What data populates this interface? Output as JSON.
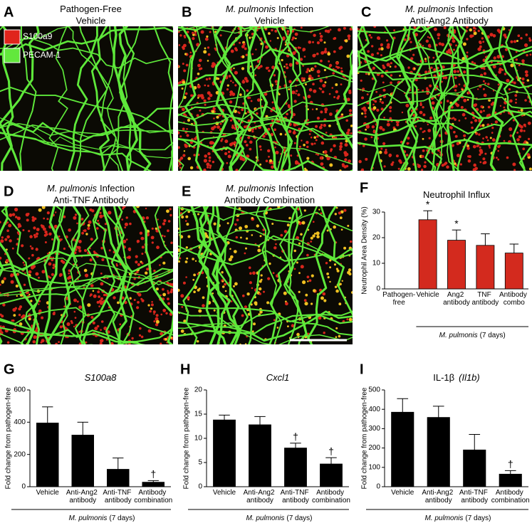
{
  "panels": [
    {
      "letter": "A",
      "line1": "Pathogen-Free",
      "line2": "Vehicle"
    },
    {
      "letter": "B",
      "italic": "M. pulmonis",
      "line1": "Infection",
      "line2": "Vehicle"
    },
    {
      "letter": "C",
      "italic": "M. pulmonis",
      "line1": "Infection",
      "line2": "Anti-Ang2 Antibody"
    },
    {
      "letter": "D",
      "italic": "M. pulmonis",
      "line1": "Infection",
      "line2": "Anti-TNF Antibody"
    },
    {
      "letter": "E",
      "italic": "M. pulmonis",
      "line1": "Infection",
      "line2": "Antibody Combination"
    }
  ],
  "legend": [
    {
      "name": "S100a9",
      "color": "#e0241c"
    },
    {
      "name": "PECAM-1",
      "color": "#62e83c"
    }
  ],
  "chart_data": [
    {
      "type": "bar",
      "letter": "F",
      "title": "Neutrophil Influx",
      "ylabel": "Neutrophil Area Density (%)",
      "categories": [
        "Pathogen-free",
        "Vehicle",
        "Ang2 antibody",
        "TNF antibody",
        "Antibody combo"
      ],
      "values": [
        0,
        27,
        19,
        17,
        14
      ],
      "errors": [
        0,
        3.5,
        4,
        4.5,
        3.5
      ],
      "markers": [
        null,
        "*",
        "*",
        null,
        null
      ],
      "color": "#d32a1e",
      "ylim": [
        0,
        30
      ],
      "yticks": [
        0,
        10,
        20,
        30
      ],
      "group_label_italic": "M. pulmonis",
      "group_label": "(7 days)"
    },
    {
      "type": "bar",
      "letter": "G",
      "title_italic": "S100a8",
      "ylabel": "Fold change from pathogen-free",
      "categories": [
        "Vehicle",
        "Anti-Ang2 antibody",
        "Anti-TNF antibody",
        "Antibody combination"
      ],
      "values": [
        395,
        320,
        108,
        28
      ],
      "errors": [
        100,
        80,
        70,
        10
      ],
      "markers": [
        null,
        null,
        null,
        "†"
      ],
      "color": "#000000",
      "ylim": [
        0,
        600
      ],
      "yticks": [
        0,
        200,
        400,
        600
      ],
      "group_label_italic": "M. pulmonis",
      "group_label": "(7 days)"
    },
    {
      "type": "bar",
      "letter": "H",
      "title_italic": "Cxcl1",
      "ylabel": "Fold change from pathogen-free",
      "categories": [
        "Vehicle",
        "Anti-Ang2 antibody",
        "Anti-TNF antibody",
        "Antibody combination"
      ],
      "values": [
        13.8,
        12.8,
        8,
        4.7
      ],
      "errors": [
        1,
        1.7,
        1,
        1.3
      ],
      "markers": [
        null,
        null,
        "†",
        "†"
      ],
      "color": "#000000",
      "ylim": [
        0,
        20
      ],
      "yticks": [
        0,
        5,
        10,
        15,
        20
      ],
      "group_label_italic": "M. pulmonis",
      "group_label": "(7 days)"
    },
    {
      "type": "bar",
      "letter": "I",
      "title": "IL-1β",
      "title_italic": "(Il1b)",
      "ylabel": "Fold change from pathogen-free",
      "categories": [
        "Vehicle",
        "Anti-Ang2 antibody",
        "Anti-TNF antibody",
        "Antibody combination"
      ],
      "values": [
        385,
        358,
        190,
        65
      ],
      "errors": [
        70,
        58,
        80,
        18
      ],
      "markers": [
        null,
        null,
        null,
        "†"
      ],
      "color": "#000000",
      "ylim": [
        0,
        500
      ],
      "yticks": [
        0,
        100,
        200,
        300,
        400,
        500
      ],
      "group_label_italic": "M. pulmonis",
      "group_label": "(7 days)"
    }
  ]
}
